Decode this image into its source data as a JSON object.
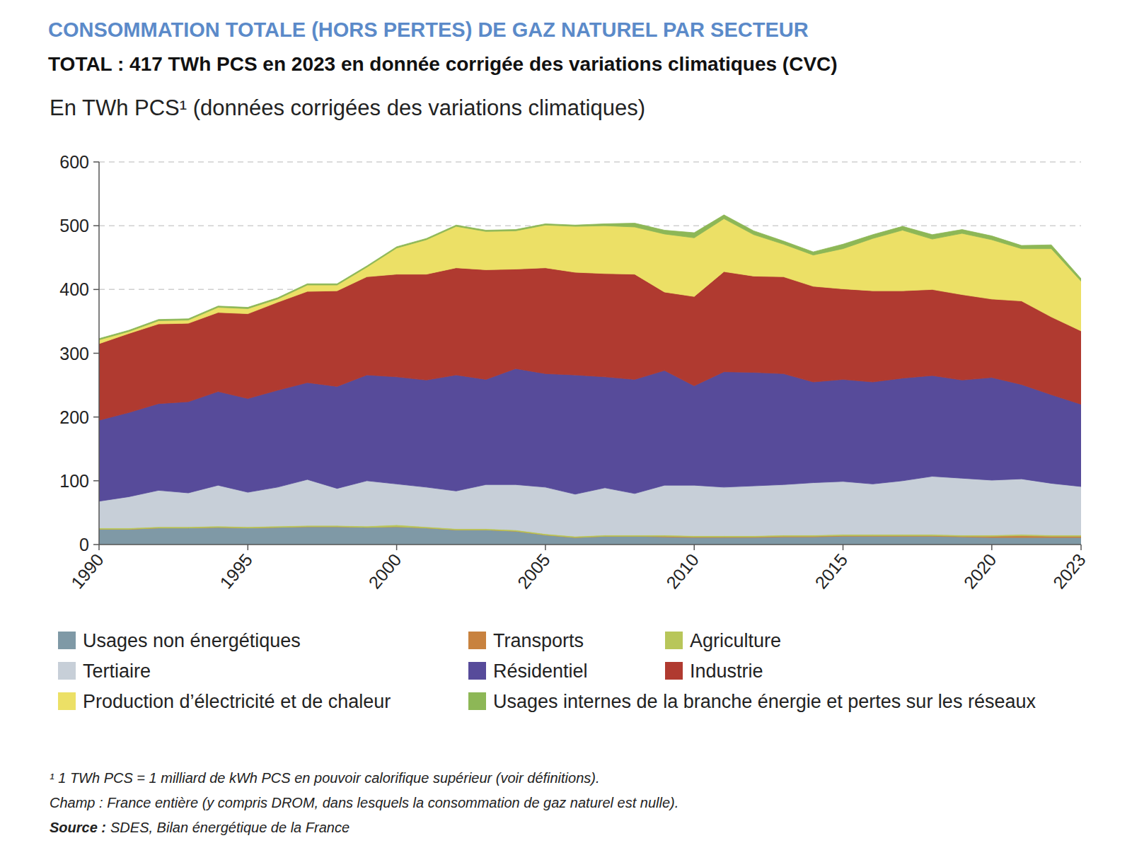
{
  "chart_data": {
    "type": "area",
    "stacked": true,
    "grid": true,
    "title": "CONSOMMATION TOTALE (HORS PERTES) DE GAZ NATUREL PAR SECTEUR",
    "subtitle": "TOTAL : 417 TWh PCS en 2023 en donnée corrigée des variations climatiques (CVC)",
    "y_label": "En TWh PCS¹ (données corrigées des variations climatiques)",
    "notes": [
      "¹ 1 TWh PCS = 1 milliard de kWh PCS en pouvoir calorifique supérieur (voir définitions).",
      "Champ : France entière (y compris DROM, dans lesquels la consommation de gaz naturel est nulle)."
    ],
    "source": {
      "label": "Source :",
      "text": "SDES, Bilan énergétique de la France"
    },
    "x": [
      1990,
      1991,
      1992,
      1993,
      1994,
      1995,
      1996,
      1997,
      1998,
      1999,
      2000,
      2001,
      2002,
      2003,
      2004,
      2005,
      2006,
      2007,
      2008,
      2009,
      2010,
      2011,
      2012,
      2013,
      2014,
      2015,
      2016,
      2017,
      2018,
      2019,
      2020,
      2021,
      2022,
      2023
    ],
    "xlim": [
      1990,
      2023
    ],
    "xticks": [
      1990,
      1995,
      2000,
      2005,
      2010,
      2015,
      2020,
      2023
    ],
    "ylim": [
      0,
      600
    ],
    "yticks": [
      0,
      100,
      200,
      300,
      400,
      500,
      600
    ],
    "series": [
      {
        "name": "Usages non énergétiques",
        "color": "#7f99a6",
        "values": [
          24,
          24,
          26,
          26,
          27,
          26,
          27,
          28,
          28,
          27,
          28,
          26,
          23,
          23,
          21,
          15,
          11,
          13,
          13,
          12,
          11,
          11,
          11,
          12,
          12,
          13,
          13,
          13,
          13,
          12,
          11,
          11,
          11,
          11
        ]
      },
      {
        "name": "Transports",
        "color": "#c8823f",
        "values": [
          0,
          0,
          0,
          0,
          0,
          0,
          0,
          0,
          0,
          0,
          0,
          0,
          0,
          0,
          0,
          0,
          0,
          0,
          0,
          1,
          1,
          1,
          1,
          1,
          1,
          1,
          1,
          1,
          1,
          1,
          2,
          3,
          2,
          2
        ]
      },
      {
        "name": "Agriculture",
        "color": "#b8c65a",
        "values": [
          2,
          2,
          2,
          2,
          2,
          2,
          2,
          2,
          2,
          2,
          3,
          2,
          2,
          2,
          2,
          2,
          2,
          2,
          2,
          2,
          2,
          2,
          2,
          2,
          2,
          2,
          2,
          2,
          2,
          2,
          2,
          2,
          2,
          2
        ]
      },
      {
        "name": "Tertiaire",
        "color": "#c7cfd8",
        "values": [
          42,
          49,
          57,
          53,
          64,
          54,
          61,
          72,
          58,
          71,
          64,
          62,
          59,
          69,
          71,
          73,
          66,
          74,
          65,
          78,
          79,
          76,
          78,
          79,
          82,
          83,
          79,
          84,
          91,
          89,
          86,
          87,
          81,
          76
        ]
      },
      {
        "name": "Résidentiel",
        "color": "#574b9a",
        "values": [
          127,
          132,
          136,
          143,
          147,
          147,
          152,
          152,
          160,
          166,
          168,
          168,
          182,
          165,
          182,
          178,
          187,
          174,
          179,
          180,
          156,
          181,
          178,
          174,
          158,
          160,
          160,
          161,
          158,
          154,
          161,
          148,
          139,
          129
        ]
      },
      {
        "name": "Industrie",
        "color": "#b03a30",
        "values": [
          120,
          124,
          125,
          123,
          124,
          133,
          138,
          143,
          150,
          154,
          161,
          166,
          168,
          172,
          156,
          166,
          161,
          162,
          165,
          123,
          140,
          157,
          151,
          152,
          150,
          142,
          143,
          137,
          135,
          134,
          123,
          131,
          122,
          115
        ]
      },
      {
        "name": "Production d’électricité et de chaleur",
        "color": "#ece066",
        "values": [
          6,
          3,
          5,
          5,
          8,
          8,
          5,
          10,
          9,
          15,
          41,
          54,
          65,
          60,
          60,
          67,
          72,
          75,
          74,
          91,
          92,
          83,
          65,
          51,
          49,
          63,
          82,
          95,
          79,
          96,
          93,
          82,
          107,
          78
        ]
      },
      {
        "name": "Usages internes de la branche énergie et pertes sur les réseaux",
        "color": "#8db756",
        "values": [
          2,
          2,
          2,
          2,
          2,
          2,
          2,
          2,
          2,
          2,
          2,
          2,
          2,
          2,
          2,
          2,
          2,
          3,
          6,
          6,
          8,
          6,
          6,
          5,
          5,
          7,
          6,
          6,
          7,
          6,
          6,
          5,
          6,
          4
        ]
      }
    ]
  }
}
